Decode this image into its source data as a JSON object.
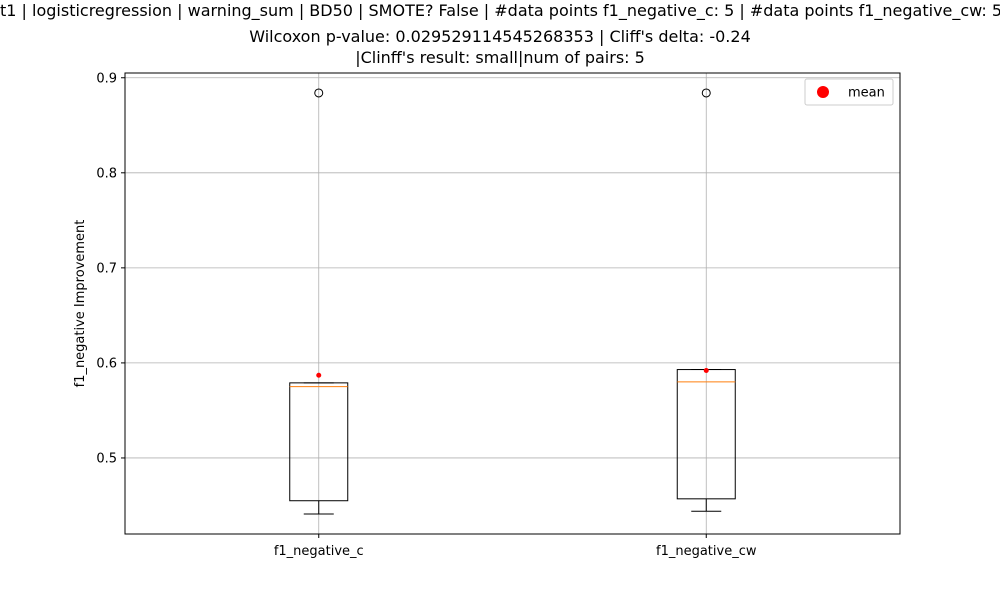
{
  "chart_data": {
    "type": "box",
    "title": {
      "line1": "t1 | logisticregression | warning_sum | BD50 | SMOTE? False | #data points f1_negative_c: 5 | #data points f1_negative_cw: 5",
      "line2": "Wilcoxon p-value: 0.029529114545268353 | Cliff's delta: -0.24",
      "line3": "|Clinff's result: small|num of pairs: 5"
    },
    "ylabel": "f1_negative Improvement",
    "xlabel": "",
    "categories": [
      "f1_negative_c",
      "f1_negative_cw"
    ],
    "ylim": [
      0.42,
      0.905
    ],
    "yticks": [
      0.5,
      0.6,
      0.7,
      0.8,
      0.9
    ],
    "ytick_labels": [
      "0.5",
      "0.6",
      "0.7",
      "0.8",
      "0.9"
    ],
    "grid": true,
    "legend": {
      "position": "top-right",
      "entries": [
        {
          "label": "mean",
          "color": "#ff0000"
        }
      ]
    },
    "boxes": [
      {
        "category": "f1_negative_c",
        "whisker_low": 0.441,
        "q1": 0.455,
        "median": 0.575,
        "q3": 0.579,
        "whisker_high": 0.579,
        "mean": 0.587,
        "outliers": [
          0.884
        ]
      },
      {
        "category": "f1_negative_cw",
        "whisker_low": 0.444,
        "q1": 0.457,
        "median": 0.58,
        "q3": 0.593,
        "whisker_high": 0.593,
        "mean": 0.592,
        "outliers": [
          0.884
        ]
      }
    ],
    "colors": {
      "box": "#000000",
      "median": "#ff7f0e",
      "mean": "#ff0000",
      "grid": "#b0b0b0",
      "outlier": "#000000"
    }
  }
}
